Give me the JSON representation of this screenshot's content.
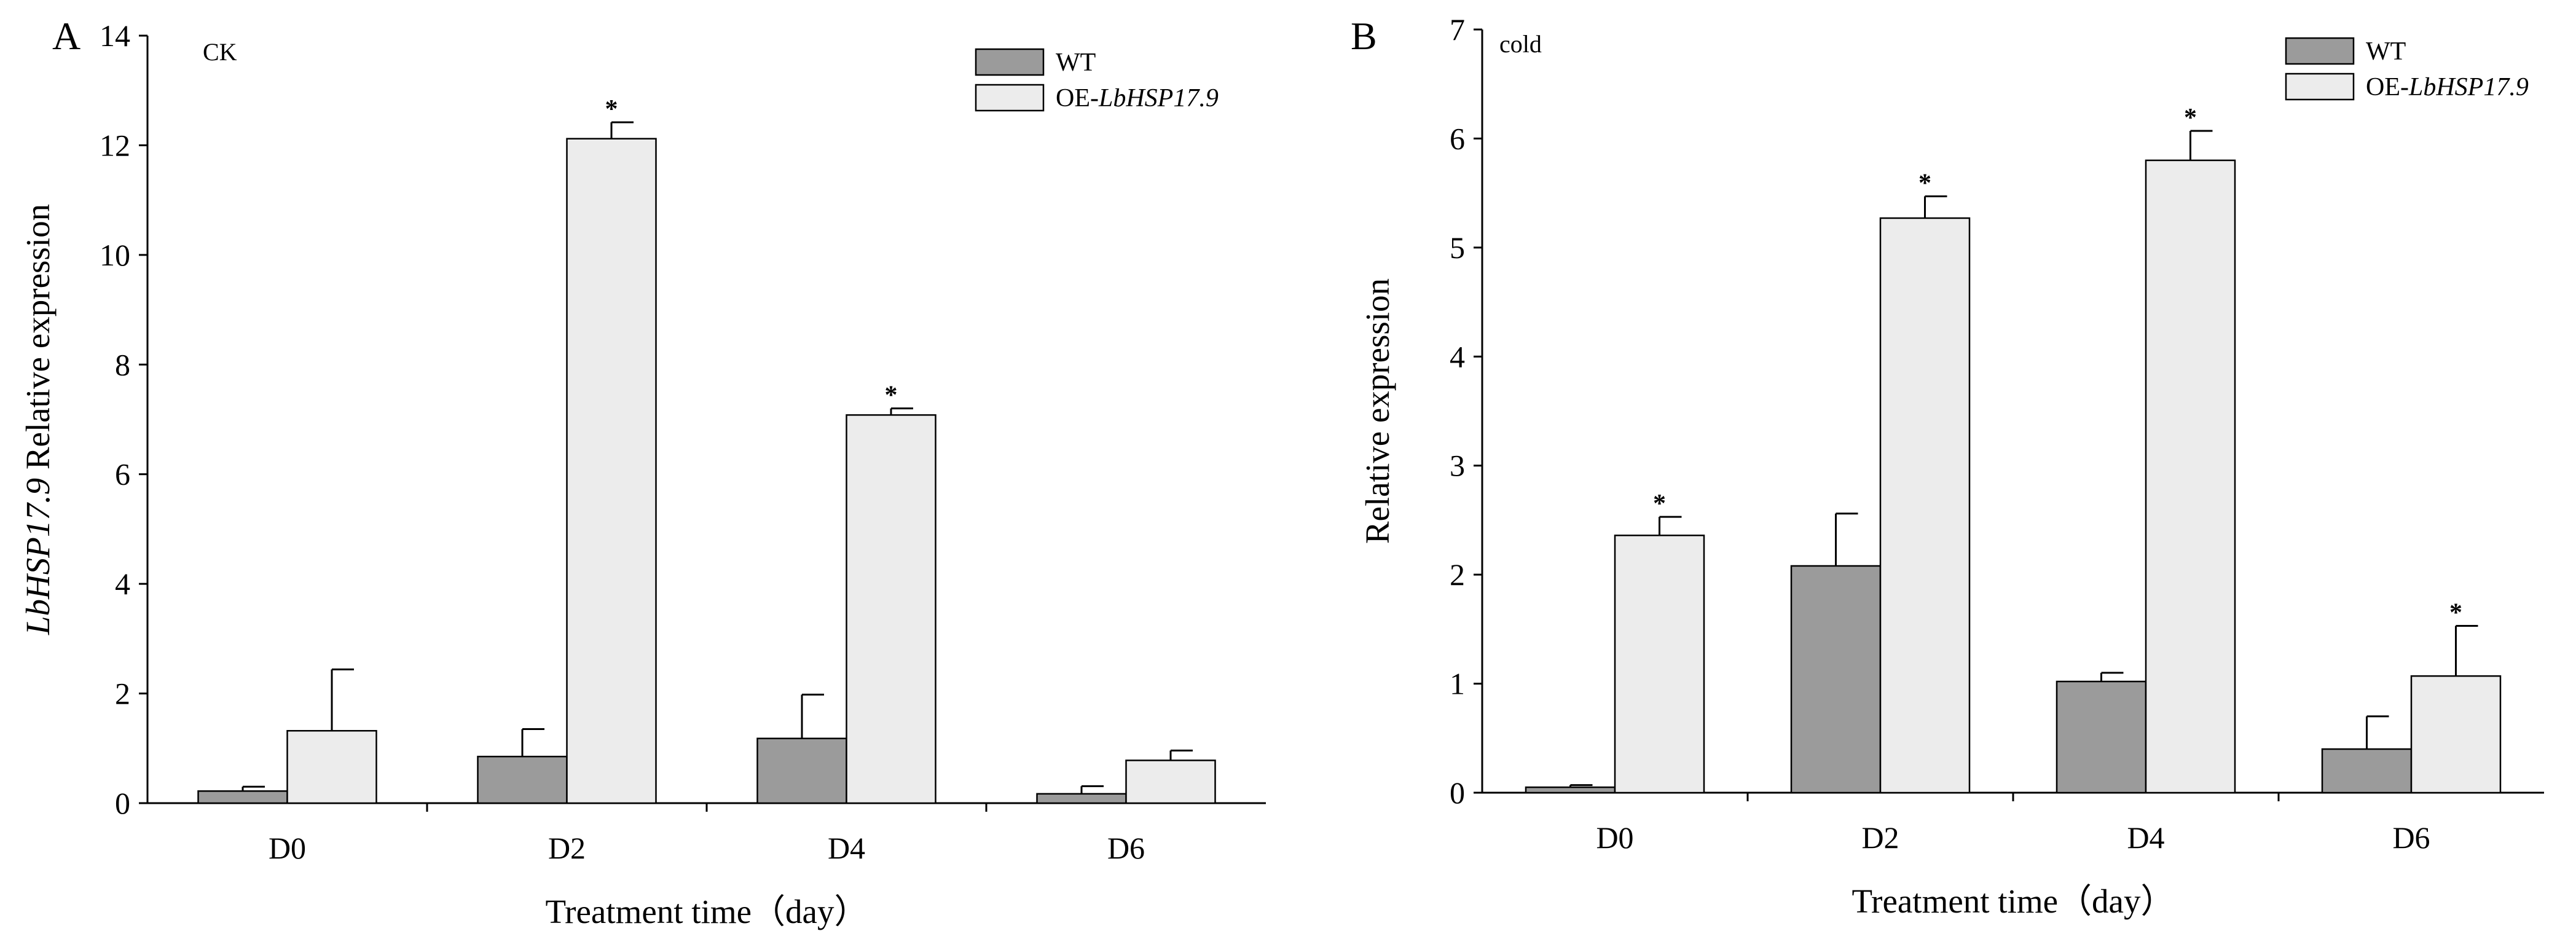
{
  "colors": {
    "wt": "#9b9b9b",
    "oe": "#ececec",
    "stroke": "#000000"
  },
  "chart_data": [
    {
      "type": "bar",
      "panel": "A",
      "tag": "CK",
      "categories": [
        "D0",
        "D2",
        "D4",
        "D6"
      ],
      "series": [
        {
          "name": "WT",
          "values": [
            0.22,
            0.85,
            1.18,
            0.17
          ],
          "errors": [
            0.08,
            0.5,
            0.8,
            0.14
          ],
          "significant": [
            false,
            false,
            false,
            false
          ]
        },
        {
          "name": "OE-LbHSP17.9",
          "values": [
            1.32,
            12.12,
            7.08,
            0.78
          ],
          "errors": [
            1.12,
            0.3,
            0.12,
            0.18
          ],
          "significant": [
            false,
            true,
            true,
            false
          ]
        }
      ],
      "ylim": [
        0,
        14
      ],
      "yticks": [
        0,
        2,
        4,
        6,
        8,
        10,
        12,
        14
      ],
      "xlabel": "Treatment time（day）",
      "ylabel_italic": "LbHSP17.9",
      "ylabel_rest": " Relative expression",
      "legend": {
        "placement": "top-right",
        "items": [
          {
            "prefix": "WT",
            "italic": ""
          },
          {
            "prefix": "OE-",
            "italic": "LbHSP17.9"
          }
        ]
      }
    },
    {
      "type": "bar",
      "panel": "B",
      "tag": "cold",
      "categories": [
        "D0",
        "D2",
        "D4",
        "D6"
      ],
      "series": [
        {
          "name": "WT",
          "values": [
            0.05,
            2.08,
            1.02,
            0.4
          ],
          "errors": [
            0.02,
            0.48,
            0.08,
            0.3
          ],
          "significant": [
            false,
            false,
            false,
            false
          ]
        },
        {
          "name": "OE-LbHSP17.9",
          "values": [
            2.36,
            5.27,
            5.8,
            1.07
          ],
          "errors": [
            0.17,
            0.2,
            0.27,
            0.46
          ],
          "significant": [
            true,
            true,
            true,
            true
          ]
        }
      ],
      "ylim": [
        0,
        7
      ],
      "yticks": [
        0,
        1,
        2,
        3,
        4,
        5,
        6,
        7
      ],
      "xlabel": "Treatment time（day）",
      "ylabel_italic": "",
      "ylabel_rest": "Relative expression",
      "legend": {
        "placement": "top-right",
        "items": [
          {
            "prefix": "WT",
            "italic": ""
          },
          {
            "prefix": "OE-",
            "italic": "LbHSP17.9"
          }
        ]
      }
    }
  ]
}
